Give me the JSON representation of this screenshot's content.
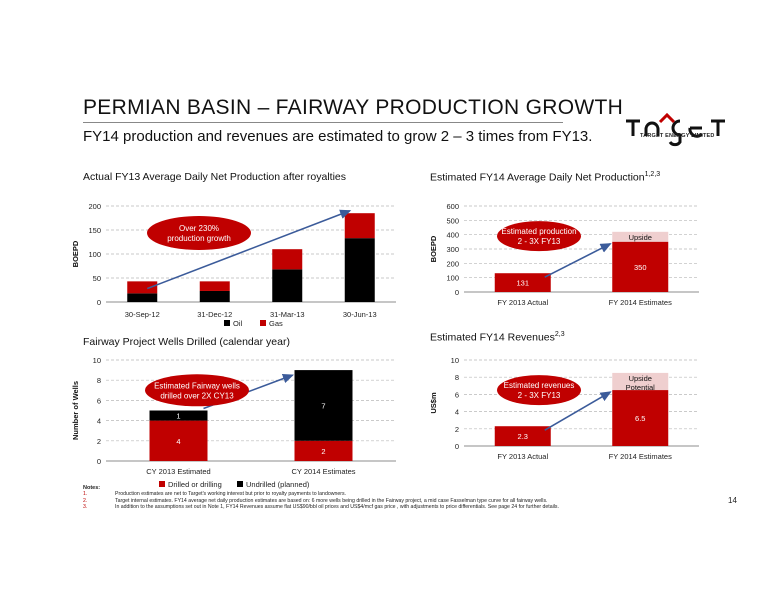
{
  "header": {
    "title": "PERMIAN BASIN – FAIRWAY PRODUCTION GROWTH",
    "subtitle": "FY14 production and revenues are estimated to grow 2 – 3 times from FY13.",
    "logo_text": "TARGET ENERGY LIMITED",
    "page_number": "14"
  },
  "colors": {
    "oil": "#000000",
    "gas": "#c00000",
    "upside": "#efcfcf",
    "arrow": "#3b5b9a",
    "callout": "#c00000"
  },
  "chart_data": [
    {
      "id": "fy13_production",
      "type": "bar",
      "stacked": true,
      "title": "Actual FY13 Average Daily Net Production after royalties",
      "ylabel": "BOEPD",
      "categories": [
        "30-Sep-12",
        "31-Dec-12",
        "31-Mar-13",
        "30-Jun-13"
      ],
      "series": [
        {
          "name": "Oil",
          "values": [
            18,
            23,
            68,
            133
          ]
        },
        {
          "name": "Gas",
          "values": [
            25,
            20,
            42,
            52
          ]
        }
      ],
      "ylim": [
        0,
        200
      ],
      "yticks": [
        "0",
        "50",
        "100",
        "150",
        "200"
      ],
      "grid": true,
      "legend": "bottom",
      "annotation": "Over 230% production growth"
    },
    {
      "id": "fy14_production",
      "type": "bar",
      "title": "Estimated FY14 Average Daily Net Production",
      "title_sup": "1,2,3",
      "ylabel": "BOEPD",
      "categories": [
        "FY 2013 Actual",
        "FY 2014 Estimates"
      ],
      "values": [
        131,
        350
      ],
      "value_labels": [
        "131",
        "350"
      ],
      "upside_top": 420,
      "upside_label": "Upside Potential",
      "ylim": [
        0,
        600
      ],
      "yticks": [
        "0",
        "100",
        "200",
        "300",
        "400",
        "500",
        "600"
      ],
      "grid": true,
      "annotation": "Estimated production 2 - 3X FY13"
    },
    {
      "id": "wells_drilled",
      "type": "bar",
      "stacked": true,
      "title": "Fairway Project Wells Drilled (calendar year)",
      "ylabel": "Number of Wells",
      "categories": [
        "CY 2013 Estimated",
        "CY 2014 Estimates"
      ],
      "series": [
        {
          "name": "Drilled or drilling",
          "values": [
            4,
            2
          ],
          "labels": [
            "4",
            "2"
          ]
        },
        {
          "name": "Undrilled (planned)",
          "values": [
            1,
            7
          ],
          "labels": [
            "1",
            "7"
          ]
        }
      ],
      "ylim": [
        0,
        10
      ],
      "yticks": [
        "0",
        "2",
        "4",
        "6",
        "8",
        "10"
      ],
      "grid": true,
      "legend": "bottom",
      "annotation": "Estimated Fairway wells drilled over 2X CY13"
    },
    {
      "id": "fy14_revenues",
      "type": "bar",
      "title": "Estimated FY14 Revenues",
      "title_sup": "2,3",
      "ylabel": "US$m",
      "categories": [
        "FY 2013 Actual",
        "FY 2014 Estimates"
      ],
      "values": [
        2.3,
        6.5
      ],
      "value_labels": [
        "2.3",
        "6.5"
      ],
      "upside_top": 8.5,
      "upside_label": "Upside Potential",
      "ylim": [
        0,
        10
      ],
      "yticks": [
        "0",
        "2",
        "4",
        "6",
        "8",
        "10"
      ],
      "grid": true,
      "annotation": "Estimated revenues 2 - 3X FY13"
    }
  ],
  "notes": {
    "heading": "Notes:",
    "items": [
      {
        "num": "1.",
        "text": "Production estimates are net to Target's working interest but prior to royalty payments to landowners."
      },
      {
        "num": "2.",
        "text": "Target internal estimates. FY14 average net daily production estimates are based on: 6 more wells being drilled in the Fairway project, a mid case Fasselman type curve for all fairway wells."
      },
      {
        "num": "3.",
        "text": "In addition to the assumptions set out in Note 1, FY14 Revenues assume flat US$90/bbl oil prices and US$4/mcf gas price , with adjustments to price differentials. See page 24 for further details."
      }
    ]
  }
}
